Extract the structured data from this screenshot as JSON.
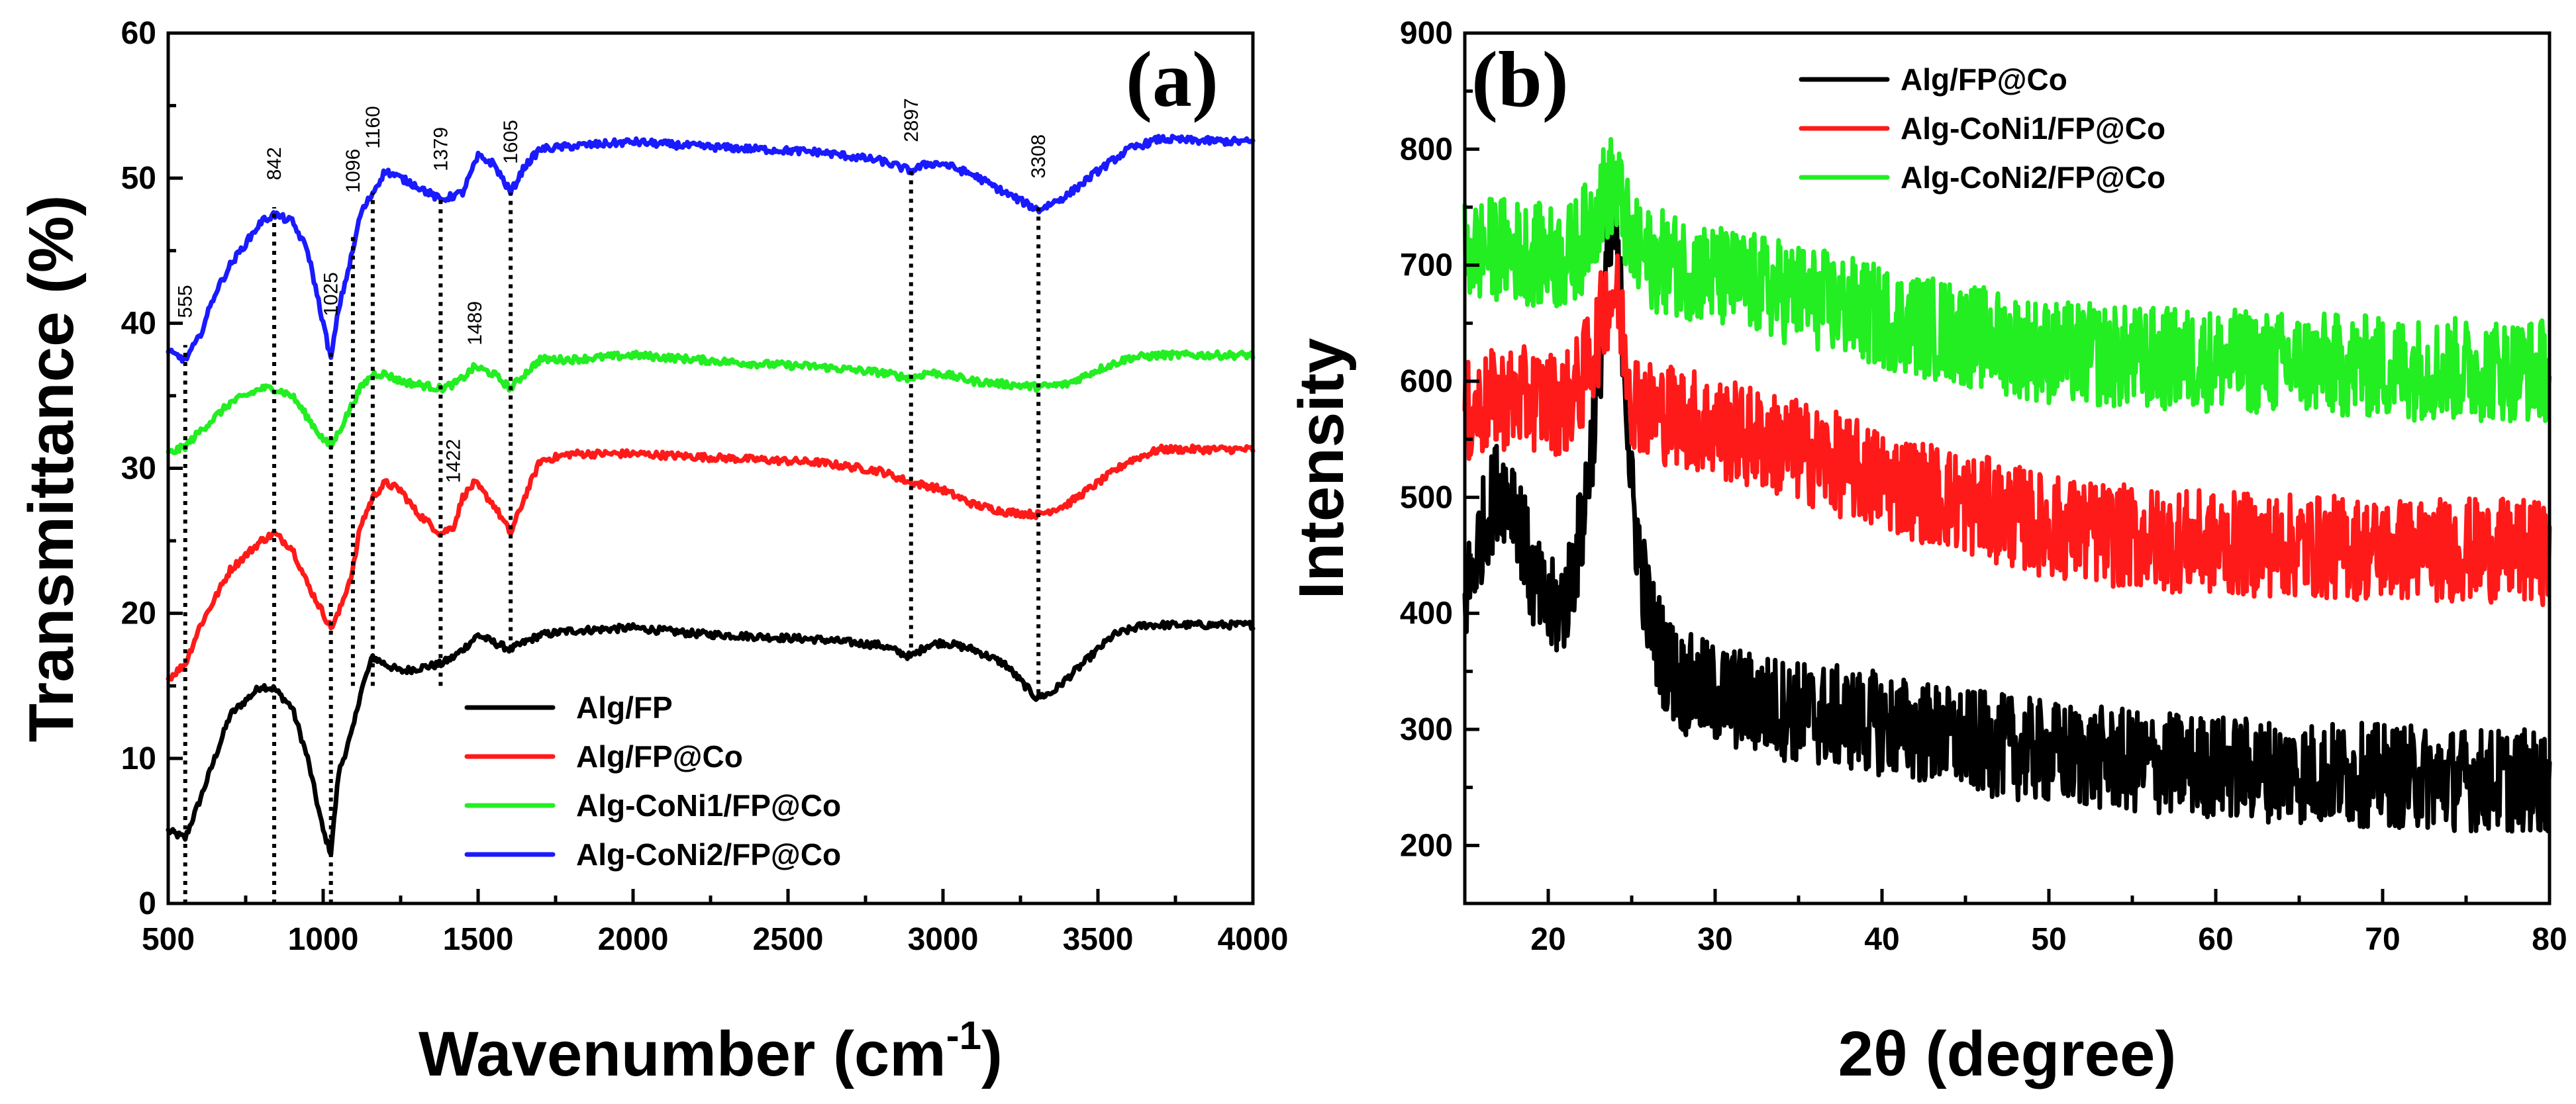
{
  "colors": {
    "black": "#000000",
    "red": "#ff1a1a",
    "green": "#22ee22",
    "blue": "#1a1aff"
  },
  "chart_data": [
    {
      "id": "a",
      "type": "line",
      "panel_label": "(a)",
      "xlabel": "Wavenumber (cm",
      "xlabel_sup": "-1",
      "xlabel_close": ")",
      "ylabel": "Transmittance (%)",
      "xlim": [
        500,
        4000
      ],
      "ylim": [
        0,
        60
      ],
      "xticks": [
        "500",
        "1000",
        "1500",
        "2000",
        "2500",
        "3000",
        "3500",
        "4000"
      ],
      "yticks": [
        "0",
        "10",
        "20",
        "30",
        "40",
        "50",
        "60"
      ],
      "grid": false,
      "legend_position": "bottom-center",
      "series": [
        {
          "name": "Alg/FP",
          "color": "#000000",
          "x": [
            500,
            555,
            600,
            700,
            800,
            842,
            900,
            950,
            1000,
            1025,
            1050,
            1096,
            1120,
            1160,
            1200,
            1250,
            1300,
            1379,
            1422,
            1450,
            1500,
            1550,
            1605,
            1650,
            1700,
            1800,
            2000,
            2200,
            2400,
            2600,
            2800,
            2897,
            2950,
            3000,
            3100,
            3200,
            3300,
            3350,
            3450,
            3550,
            3650,
            3750,
            4000
          ],
          "y": [
            5,
            4.5,
            7,
            13,
            15,
            14.8,
            13.5,
            10,
            5,
            3.5,
            9,
            12,
            14.5,
            17,
            16.5,
            16,
            16.2,
            16.5,
            17,
            17.5,
            18.5,
            18,
            17.5,
            18,
            18.5,
            18.8,
            19,
            18.6,
            18.4,
            18.2,
            17.8,
            17,
            17.8,
            18,
            17.5,
            16.5,
            14.2,
            14.5,
            16.5,
            18.5,
            19.2,
            19.2,
            19.2
          ]
        },
        {
          "name": "Alg/FP@Co",
          "color": "#ff1a1a",
          "x": [
            500,
            555,
            600,
            700,
            800,
            842,
            900,
            950,
            1000,
            1025,
            1050,
            1096,
            1120,
            1160,
            1200,
            1250,
            1300,
            1379,
            1422,
            1450,
            1489,
            1550,
            1605,
            1650,
            1700,
            1800,
            2000,
            2200,
            2400,
            2600,
            2800,
            2897,
            2950,
            3000,
            3100,
            3200,
            3308,
            3400,
            3500,
            3600,
            3700,
            3800,
            4000
          ],
          "y": [
            15.5,
            16.5,
            19,
            23,
            25,
            25.5,
            24.5,
            22,
            20,
            19,
            20,
            23,
            26,
            28,
            29,
            28.5,
            27,
            25.5,
            26,
            28,
            29,
            27.5,
            25.5,
            28,
            30.5,
            31,
            31,
            30.8,
            30.6,
            30.4,
            29.8,
            29,
            28.8,
            28.5,
            27.5,
            27,
            26.8,
            27.5,
            29,
            30.5,
            31.3,
            31.3,
            31.3
          ]
        },
        {
          "name": "Alg-CoNi1/FP@Co",
          "color": "#22ee22",
          "x": [
            500,
            555,
            600,
            700,
            800,
            842,
            900,
            950,
            1000,
            1025,
            1050,
            1096,
            1120,
            1160,
            1200,
            1250,
            1300,
            1379,
            1422,
            1450,
            1489,
            1550,
            1605,
            1650,
            1700,
            1800,
            2000,
            2200,
            2400,
            2600,
            2800,
            2897,
            2950,
            3000,
            3100,
            3200,
            3308,
            3400,
            3500,
            3600,
            3700,
            4000
          ],
          "y": [
            31,
            31.5,
            32.5,
            34.5,
            35.5,
            35.5,
            35,
            33.5,
            32,
            31.5,
            32.5,
            34.5,
            35.5,
            36.5,
            36.5,
            36,
            35.8,
            35.5,
            35.8,
            36.2,
            37,
            36.5,
            35.5,
            36.5,
            37.5,
            37.5,
            37.8,
            37.5,
            37.2,
            37,
            36.6,
            36.2,
            36.6,
            36.5,
            36,
            35.8,
            35.6,
            35.8,
            36.8,
            37.6,
            37.8,
            37.8
          ]
        },
        {
          "name": "Alg-CoNi2/FP@Co",
          "color": "#1a1aff",
          "x": [
            500,
            555,
            600,
            650,
            700,
            800,
            842,
            900,
            950,
            1000,
            1025,
            1050,
            1096,
            1120,
            1160,
            1200,
            1250,
            1300,
            1379,
            1422,
            1450,
            1500,
            1550,
            1605,
            1650,
            1700,
            1800,
            2000,
            2200,
            2400,
            2600,
            2800,
            2897,
            2950,
            3000,
            3100,
            3200,
            3308,
            3400,
            3500,
            3600,
            3700,
            3800,
            4000
          ],
          "y": [
            38,
            37.5,
            39,
            42,
            44,
            47,
            47.5,
            47,
            45,
            40,
            37.5,
            41,
            45,
            47.5,
            49,
            50.5,
            50,
            49.5,
            48.5,
            48.8,
            49,
            51.5,
            51,
            49,
            50.8,
            52,
            52.2,
            52.5,
            52.2,
            52,
            51.8,
            51.2,
            50.5,
            51,
            51,
            50.2,
            49,
            47.8,
            48.8,
            50.5,
            52,
            52.7,
            52.6,
            52.5
          ]
        }
      ],
      "annotations": [
        {
          "label": "555",
          "x": 555,
          "y_from": 0,
          "y_to": 38.5,
          "text_y": 41.5,
          "rotate": true
        },
        {
          "label": "842",
          "x": 842,
          "y_from": 0,
          "y_to": 48,
          "text_y": 51,
          "rotate": true
        },
        {
          "label": "1025",
          "x": 1025,
          "y_from": 0,
          "y_to": 38,
          "text_y": 42,
          "rotate": true
        },
        {
          "label": "1096",
          "x": 1096,
          "y_from": 15,
          "y_to": 46,
          "text_y": 50.5,
          "rotate": true
        },
        {
          "label": "1160",
          "x": 1160,
          "y_from": 15,
          "y_to": 49,
          "text_y": 53.5,
          "rotate": true
        },
        {
          "label": "1379",
          "x": 1379,
          "y_from": 15,
          "y_to": 48.5,
          "text_y": 52,
          "rotate": true
        },
        {
          "label": "1422",
          "x": 1420,
          "y_from": null,
          "y_to": null,
          "text_y": 30.5,
          "rotate": true
        },
        {
          "label": "1489",
          "x": 1489,
          "y_from": null,
          "y_to": null,
          "text_y": 40,
          "rotate": true
        },
        {
          "label": "1605",
          "x": 1605,
          "y_from": 17.5,
          "y_to": 49,
          "text_y": 52.5,
          "rotate": true
        },
        {
          "label": "2897",
          "x": 2897,
          "y_from": 17,
          "y_to": 50.5,
          "text_y": 54,
          "rotate": true
        },
        {
          "label": "3308",
          "x": 3308,
          "y_from": 14.5,
          "y_to": 48,
          "text_y": 51.5,
          "rotate": true
        }
      ]
    },
    {
      "id": "b",
      "type": "line",
      "panel_label": "(b)",
      "xlabel": "2θ (degree)",
      "ylabel": "Intensity",
      "xlim": [
        15,
        80
      ],
      "ylim": [
        150,
        900
      ],
      "xticks": [
        "20",
        "30",
        "40",
        "50",
        "60",
        "70",
        "80"
      ],
      "yticks": [
        "200",
        "300",
        "400",
        "500",
        "600",
        "700",
        "800",
        "900"
      ],
      "grid": false,
      "legend_position": "top-center",
      "series": [
        {
          "name": "Alg/FP@Co",
          "color": "#000000",
          "x": [
            15,
            16,
            17,
            18,
            19,
            20,
            21,
            22,
            23,
            23.5,
            24,
            24.5,
            25,
            26,
            27,
            28,
            30,
            35,
            40,
            45,
            50,
            55,
            60,
            65,
            70,
            75,
            80
          ],
          "y": [
            410,
            470,
            510,
            500,
            430,
            400,
            410,
            470,
            600,
            700,
            730,
            640,
            500,
            400,
            360,
            340,
            330,
            315,
            305,
            290,
            280,
            272,
            268,
            263,
            260,
            257,
            255
          ]
        },
        {
          "name": "Alg-CoNi1/FP@Co",
          "color": "#ff1a1a",
          "x": [
            15,
            17,
            19,
            21,
            22,
            23,
            23.5,
            24,
            24.5,
            25,
            26,
            28,
            30,
            35,
            40,
            45,
            50,
            55,
            60,
            65,
            70,
            75,
            80
          ],
          "y": [
            570,
            585,
            585,
            580,
            600,
            640,
            670,
            680,
            640,
            590,
            575,
            570,
            560,
            540,
            515,
            495,
            475,
            465,
            460,
            458,
            455,
            455,
            452
          ]
        },
        {
          "name": "Alg-CoNi2/FP@Co",
          "color": "#22ee22",
          "x": [
            15,
            17,
            19,
            21,
            22,
            23,
            23.5,
            24,
            24.5,
            25,
            26,
            28,
            30,
            35,
            40,
            45,
            50,
            55,
            60,
            65,
            70,
            75,
            80
          ],
          "y": [
            710,
            715,
            710,
            705,
            720,
            750,
            765,
            770,
            745,
            715,
            705,
            700,
            690,
            675,
            655,
            640,
            625,
            620,
            618,
            615,
            612,
            610,
            610
          ]
        }
      ]
    }
  ]
}
